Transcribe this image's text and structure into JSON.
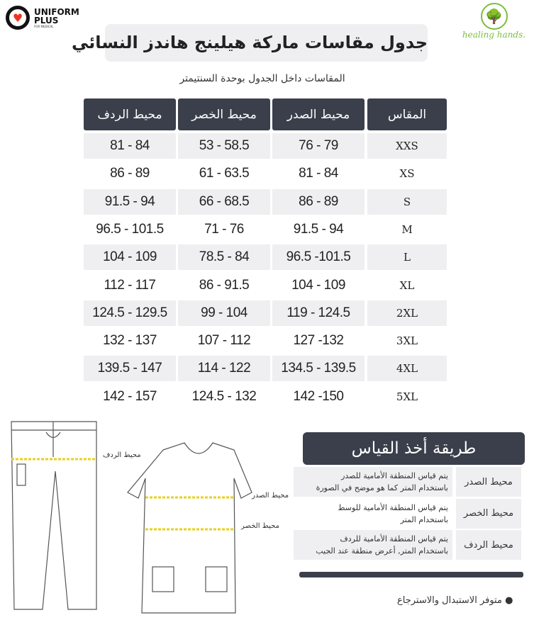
{
  "logos": {
    "left": {
      "line1": "UNIFORM",
      "line2": "PLUS",
      "tag": "FOR MEDICAL"
    },
    "right": {
      "name": "healing hands."
    }
  },
  "title": "جدول مقاسات ماركة هيلينج هاندز النسائي",
  "subtitle": "المقاسات داخل الجدول بوحدة السنتيمتر",
  "table": {
    "headers": {
      "size": "المقاس",
      "chest": "محيط الصدر",
      "waist": "محيط الخصر",
      "hip": "محيط الردف"
    },
    "rows": [
      {
        "size": "XXS",
        "chest": "76 - 79",
        "waist": "53 - 58.5",
        "hip": "81 - 84"
      },
      {
        "size": "XS",
        "chest": "81 - 84",
        "waist": "61 - 63.5",
        "hip": "86 - 89"
      },
      {
        "size": "S",
        "chest": "86 - 89",
        "waist": "66 - 68.5",
        "hip": "91.5 - 94"
      },
      {
        "size": "M",
        "chest": "91.5 - 94",
        "waist": "71 - 76",
        "hip": "96.5 - 101.5"
      },
      {
        "size": "L",
        "chest": "96.5 -101.5",
        "waist": "78.5 - 84",
        "hip": "104 - 109"
      },
      {
        "size": "XL",
        "chest": "104 - 109",
        "waist": "86 - 91.5",
        "hip": "112 - 117"
      },
      {
        "size": "2XL",
        "chest": "119 - 124.5",
        "waist": "99 - 104",
        "hip": "124.5 - 129.5"
      },
      {
        "size": "3XL",
        "chest": "127 -132",
        "waist": "107 - 112",
        "hip": "132 - 137"
      },
      {
        "size": "4XL",
        "chest": "134.5 - 139.5",
        "waist": "114 - 122",
        "hip": "139.5 - 147"
      },
      {
        "size": "5XL",
        "chest": "142 -150",
        "waist": "124.5 - 132",
        "hip": "142 - 157"
      }
    ]
  },
  "diagram": {
    "hip": "محيط الردف",
    "chest": "محيط الصدر",
    "waist": "محيط الخصر"
  },
  "howto": {
    "title": "طريقة أخذ القياس",
    "items": [
      {
        "label": "محيط الصدر",
        "l1": "يتم قياس المنطقة الأمامية للصدر",
        "l2": "باستخدام المتر كما هو موضح في الصورة"
      },
      {
        "label": "محيط الخصر",
        "l1": "يتم قياس المنطقة الأمامية للوسط",
        "l2": "باستخدام المتر"
      },
      {
        "label": "محيط الردف",
        "l1": "يتم قياس المنطقة الأمامية للردف",
        "l2": "باستخدام المتر, أعرض منطقة عند الجيب"
      }
    ]
  },
  "note": "متوفر الاستبدال والاسترجاع",
  "colors": {
    "header": "#3a3f4b",
    "stripe": "#efeff1",
    "measure": "#e8d21a"
  }
}
